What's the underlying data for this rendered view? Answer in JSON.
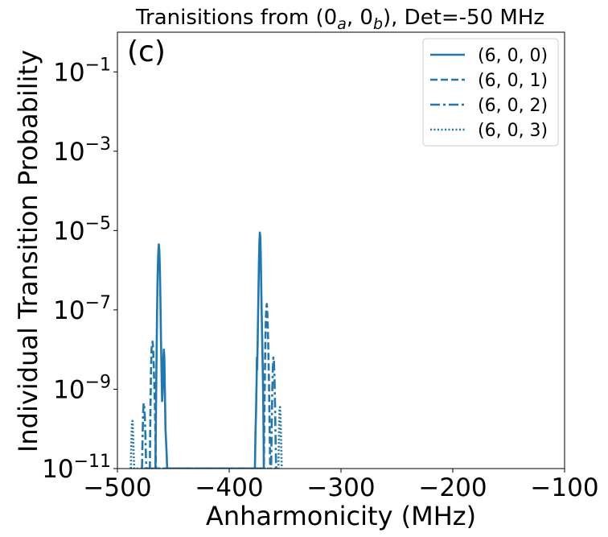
{
  "chart_data": {
    "type": "line",
    "title_parts": {
      "prefix": "Tranisitions from (0",
      "sub_a": "a",
      "mid": ", 0",
      "sub_b": "b",
      "suffix": "),  Det=-50 MHz"
    },
    "xlabel": "Anharmonicity (MHz)",
    "ylabel": "Individual Transition Probability",
    "panel_label": "(c)",
    "xlim": [
      -500,
      -100
    ],
    "ylim_log10": [
      -11,
      0
    ],
    "yscale": "log",
    "x_ticks": [
      {
        "value": -500,
        "label": "−500"
      },
      {
        "value": -400,
        "label": "−400"
      },
      {
        "value": -300,
        "label": "−300"
      },
      {
        "value": -200,
        "label": "−200"
      },
      {
        "value": -100,
        "label": "−100"
      }
    ],
    "y_ticks": [
      {
        "exp": -11,
        "base": "10",
        "sup": "−11"
      },
      {
        "exp": -9,
        "base": "10",
        "sup": "−9"
      },
      {
        "exp": -7,
        "base": "10",
        "sup": "−7"
      },
      {
        "exp": -5,
        "base": "10",
        "sup": "−5"
      },
      {
        "exp": -3,
        "base": "10",
        "sup": "−3"
      },
      {
        "exp": -1,
        "base": "10",
        "sup": "−1"
      }
    ],
    "grid": false,
    "legend_position": "top-right",
    "line_color": "#1f77b4",
    "series": [
      {
        "name": "(6, 0, 0)",
        "dash": "solid",
        "points": [
          [
            -466,
            -11
          ],
          [
            -465.5,
            -9.5
          ],
          [
            -465,
            -8.2
          ],
          [
            -464.5,
            -7.0
          ],
          [
            -464,
            -6.1
          ],
          [
            -463.5,
            -5.6
          ],
          [
            -463,
            -5.35
          ],
          [
            -462.5,
            -5.5
          ],
          [
            -462,
            -6.0
          ],
          [
            -461.5,
            -6.8
          ],
          [
            -461,
            -7.8
          ],
          [
            -460.5,
            -8.6
          ],
          [
            -460,
            -9.3
          ],
          [
            -459.5,
            -9.0
          ],
          [
            -459,
            -8.3
          ],
          [
            -458.5,
            -8.0
          ],
          [
            -458,
            -8.2
          ],
          [
            -457.5,
            -9.1
          ],
          [
            -457,
            -10.0
          ],
          [
            -456,
            -10.6
          ],
          [
            -455.5,
            -11
          ],
          [
            -377,
            -11
          ],
          [
            -376.5,
            -10.1
          ],
          [
            -376,
            -9.6
          ],
          [
            -375.5,
            -8.8
          ],
          [
            -375.2,
            -8.2
          ],
          [
            -375,
            -8.5
          ],
          [
            -374.6,
            -7.9
          ],
          [
            -374.2,
            -7.2
          ],
          [
            -373.8,
            -6.5
          ],
          [
            -373.4,
            -5.8
          ],
          [
            -373,
            -5.3
          ],
          [
            -372.6,
            -5.05
          ],
          [
            -372.2,
            -5.15
          ],
          [
            -371.8,
            -5.6
          ],
          [
            -371.4,
            -6.3
          ],
          [
            -371,
            -7.0
          ],
          [
            -370.6,
            -7.6
          ],
          [
            -370.2,
            -8.2
          ],
          [
            -369.8,
            -8.8
          ],
          [
            -369.5,
            -9.4
          ],
          [
            -369.2,
            -10.3
          ],
          [
            -369,
            -11
          ]
        ]
      },
      {
        "name": "(6, 0, 1)",
        "dash": "dashed",
        "points": [
          [
            -471,
            -11
          ],
          [
            -470.5,
            -9.6
          ],
          [
            -470,
            -8.6
          ],
          [
            -469.5,
            -8.0
          ],
          [
            -469,
            -7.85
          ],
          [
            -468.5,
            -7.8
          ],
          [
            -468,
            -8.0
          ],
          [
            -467.5,
            -8.4
          ],
          [
            -467,
            -8.9
          ],
          [
            -466.5,
            -9.4
          ],
          [
            -466,
            -10.2
          ],
          [
            -465.5,
            -11
          ],
          [
            -369,
            -11
          ],
          [
            -368.5,
            -9.6
          ],
          [
            -368,
            -8.5
          ],
          [
            -367.6,
            -7.7
          ],
          [
            -367.2,
            -7.2
          ],
          [
            -366.8,
            -6.95
          ],
          [
            -366.4,
            -6.85
          ],
          [
            -366,
            -7.0
          ],
          [
            -365.5,
            -7.4
          ],
          [
            -365,
            -8.0
          ],
          [
            -364.5,
            -8.7
          ],
          [
            -364,
            -9.6
          ],
          [
            -363.6,
            -10.5
          ],
          [
            -363.3,
            -11
          ]
        ]
      },
      {
        "name": "(6, 0, 2)",
        "dash": "dashdot",
        "points": [
          [
            -478,
            -11
          ],
          [
            -477.5,
            -10.2
          ],
          [
            -477,
            -9.6
          ],
          [
            -476.5,
            -9.35
          ],
          [
            -476,
            -9.4
          ],
          [
            -475.5,
            -9.7
          ],
          [
            -475,
            -10.1
          ],
          [
            -474.5,
            -10.7
          ],
          [
            -474,
            -11
          ],
          [
            -362.5,
            -11
          ],
          [
            -362,
            -10.0
          ],
          [
            -361.5,
            -9.1
          ],
          [
            -361,
            -8.5
          ],
          [
            -360.5,
            -8.2
          ],
          [
            -360,
            -8.3
          ],
          [
            -359.5,
            -8.7
          ],
          [
            -359,
            -9.4
          ],
          [
            -358.5,
            -10.3
          ],
          [
            -358,
            -11
          ]
        ]
      },
      {
        "name": "(6, 0, 3)",
        "dash": "dotted",
        "points": [
          [
            -488,
            -11
          ],
          [
            -487.5,
            -10.3
          ],
          [
            -487,
            -9.85
          ],
          [
            -486.5,
            -9.8
          ],
          [
            -486,
            -10.1
          ],
          [
            -485.5,
            -10.6
          ],
          [
            -485,
            -11
          ],
          [
            -356,
            -11
          ],
          [
            -355.5,
            -10.1
          ],
          [
            -355,
            -9.5
          ],
          [
            -354.5,
            -9.45
          ],
          [
            -354,
            -9.8
          ],
          [
            -353.5,
            -10.4
          ],
          [
            -353,
            -11
          ]
        ]
      }
    ]
  }
}
